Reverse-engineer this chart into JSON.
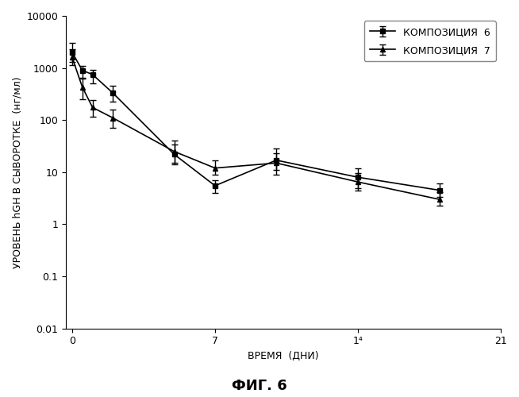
{
  "title": "ФИГ. 6",
  "xlabel": "ВРЕМЯ  (ДНИ)",
  "ylabel": "УРОВЕНЬ hGH В СЫВОРОТКЕ  (нг/мл)",
  "xlim": [
    -0.3,
    21
  ],
  "ylim_log": [
    0.01,
    10000
  ],
  "xticks": [
    0,
    7,
    14,
    21
  ],
  "xticklabels": [
    "0",
    "7",
    "1⁴",
    "21"
  ],
  "series": [
    {
      "label": "КОМПОЗИЦИЯ  6",
      "marker": "s",
      "color": "#000000",
      "x": [
        0.0,
        0.5,
        1.0,
        2.0,
        5.0,
        7.0,
        10.0,
        14.0,
        18.0
      ],
      "y": [
        2000,
        900,
        750,
        330,
        22,
        5.5,
        17,
        8,
        4.5
      ],
      "yerr_low": [
        700,
        250,
        250,
        100,
        8,
        1.5,
        8,
        3,
        1.2
      ],
      "yerr_high": [
        1000,
        200,
        180,
        120,
        12,
        1.5,
        12,
        4,
        1.5
      ]
    },
    {
      "label": "КОМПОЗИЦИЯ  7",
      "marker": "^",
      "color": "#000000",
      "x": [
        0.0,
        0.5,
        1.0,
        2.0,
        5.0,
        7.0,
        10.0,
        14.0,
        18.0
      ],
      "y": [
        1600,
        430,
        175,
        110,
        25,
        12,
        15,
        6.5,
        3.0
      ],
      "yerr_low": [
        450,
        180,
        60,
        40,
        10,
        3,
        4,
        2,
        0.7
      ],
      "yerr_high": [
        700,
        200,
        70,
        50,
        15,
        5,
        8,
        3,
        1.2
      ]
    }
  ],
  "background_color": "#ffffff",
  "axes_facecolor": "#f0f0f0",
  "legend_loc": "upper right",
  "fontsize_title": 13,
  "fontsize_label": 9,
  "fontsize_tick": 9,
  "fontsize_legend": 9
}
